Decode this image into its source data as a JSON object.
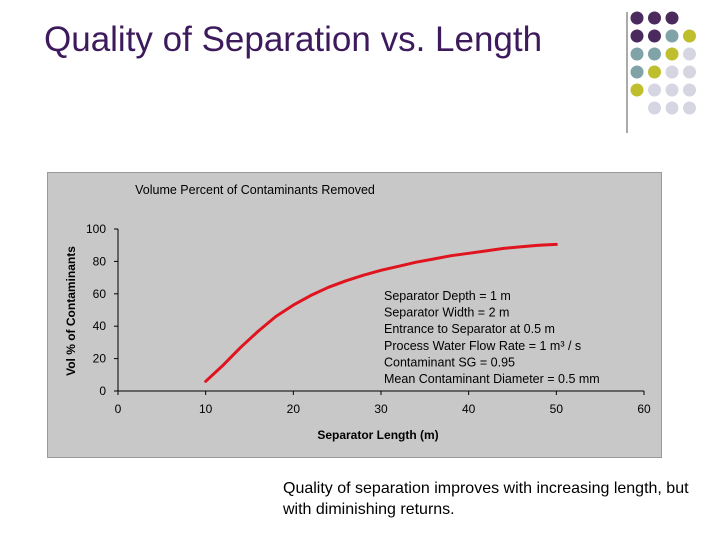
{
  "slide": {
    "title": "Quality of Separation vs. Length",
    "caption": "Quality of separation improves with increasing length, but with diminishing returns."
  },
  "colors": {
    "title": "#3d1a5c",
    "line": "#e0141e",
    "frame": "#c8c8c8",
    "deco_purple": "#4b2a5e",
    "deco_teal": "#7fa3a6",
    "deco_olive": "#bfbf2e",
    "deco_lavender": "#d6d6e3"
  },
  "decoration": {
    "dots": [
      [
        "deco_purple",
        "deco_purple",
        "deco_purple",
        ""
      ],
      [
        "deco_purple",
        "deco_purple",
        "deco_teal",
        "deco_olive"
      ],
      [
        "deco_teal",
        "deco_teal",
        "deco_olive",
        "deco_lavender"
      ],
      [
        "deco_teal",
        "deco_olive",
        "deco_lavender",
        "deco_lavender"
      ],
      [
        "deco_olive",
        "deco_lavender",
        "deco_lavender",
        "deco_lavender"
      ],
      [
        "",
        "deco_lavender",
        "deco_lavender",
        "deco_lavender"
      ]
    ]
  },
  "chart_data": {
    "type": "line",
    "title": "Volume Percent of Contaminants Removed",
    "xlabel": "Separator Length (m)",
    "ylabel": "Vol % of Contaminants",
    "xlim": [
      0,
      60
    ],
    "ylim": [
      0,
      100
    ],
    "xticks": [
      0,
      10,
      20,
      30,
      40,
      50,
      60
    ],
    "yticks": [
      0,
      20,
      40,
      60,
      80,
      100
    ],
    "grid": false,
    "legend": "none",
    "series": [
      {
        "x": [
          10,
          12,
          14,
          16,
          18,
          20,
          22,
          24,
          26,
          28,
          30,
          32,
          34,
          36,
          38,
          40,
          42,
          44,
          46,
          48,
          50
        ],
        "y": [
          6,
          16,
          27,
          37,
          46,
          53,
          59,
          64,
          68,
          71.5,
          74.5,
          77,
          79.5,
          81.5,
          83.5,
          85,
          86.5,
          88,
          89,
          90,
          90.5
        ]
      }
    ],
    "annotation": [
      "Separator Depth = 1 m",
      "Separator Width = 2 m",
      "Entrance to Separator at 0.5 m",
      "Process Water Flow Rate = 1 m³ / s",
      "Contaminant SG = 0.95",
      "Mean Contaminant Diameter = 0.5 mm"
    ]
  }
}
